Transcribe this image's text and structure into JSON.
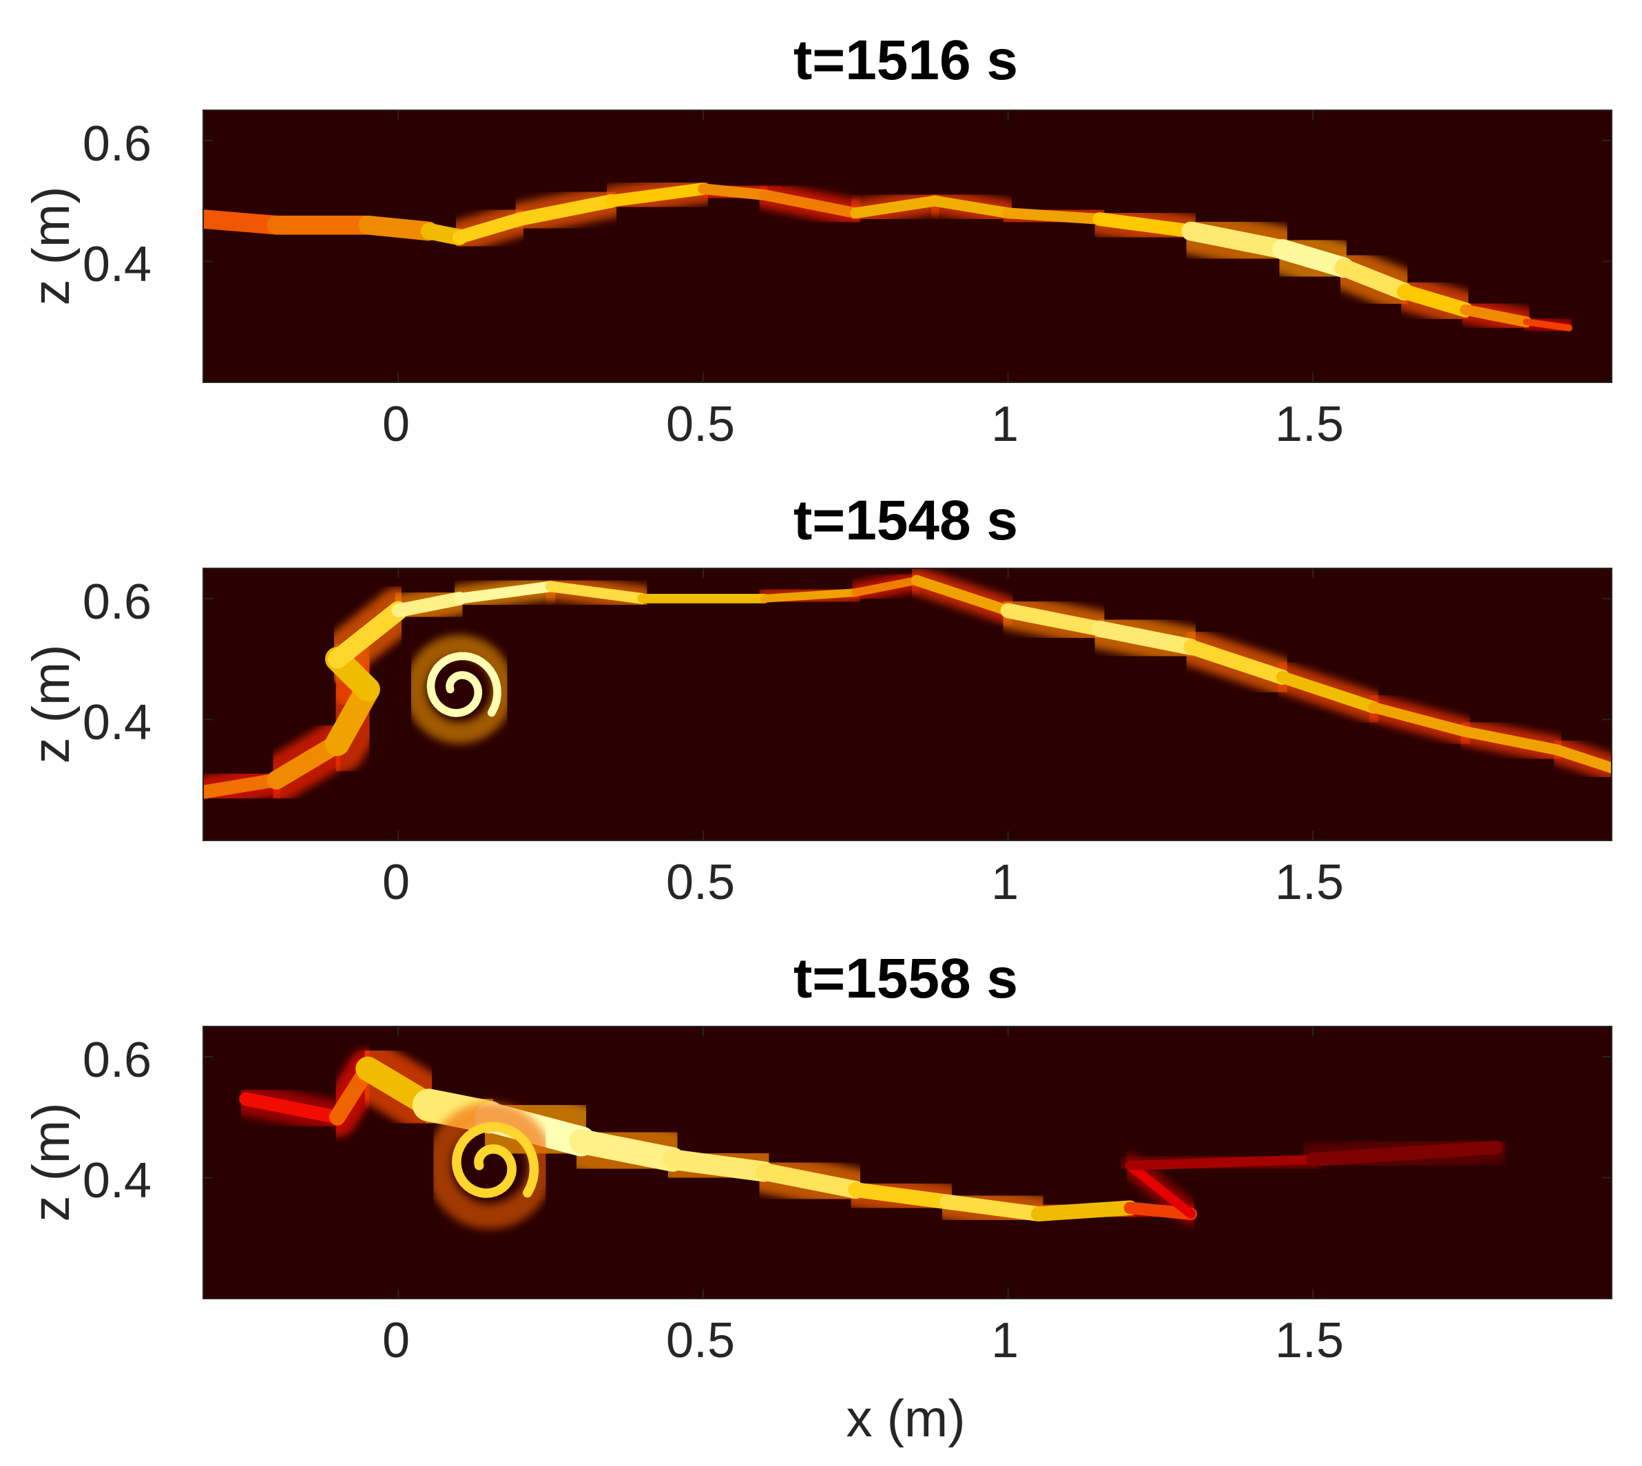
{
  "chart_data": [
    {
      "type": "heatmap",
      "title": "t=1516 s",
      "xlabel": "",
      "ylabel": "z (m)",
      "xlim": [
        -0.32,
        1.99
      ],
      "ylim": [
        0.2,
        0.65
      ],
      "xticks": [
        0,
        0.5,
        1,
        1.5
      ],
      "xtick_labels": [
        "0",
        "0.5",
        "1",
        "1.5"
      ],
      "yticks": [
        0.4,
        0.6
      ],
      "ytick_labels": [
        "0.4",
        "0.6"
      ],
      "colormap": "hot",
      "background_color": "#2a0000",
      "interface": [
        {
          "x": -0.32,
          "z": 0.47,
          "w": 0.035,
          "a": 0.55
        },
        {
          "x": -0.2,
          "z": 0.46,
          "w": 0.035,
          "a": 0.6
        },
        {
          "x": -0.05,
          "z": 0.46,
          "w": 0.035,
          "a": 0.65
        },
        {
          "x": 0.05,
          "z": 0.45,
          "w": 0.035,
          "a": 0.7
        },
        {
          "x": 0.1,
          "z": 0.44,
          "w": 0.025,
          "a": 0.85
        },
        {
          "x": 0.2,
          "z": 0.47,
          "w": 0.025,
          "a": 0.8
        },
        {
          "x": 0.35,
          "z": 0.5,
          "w": 0.025,
          "a": 0.85
        },
        {
          "x": 0.5,
          "z": 0.52,
          "w": 0.02,
          "a": 0.75
        },
        {
          "x": 0.6,
          "z": 0.51,
          "w": 0.02,
          "a": 0.6
        },
        {
          "x": 0.75,
          "z": 0.48,
          "w": 0.02,
          "a": 0.7
        },
        {
          "x": 0.88,
          "z": 0.5,
          "w": 0.02,
          "a": 0.8
        },
        {
          "x": 1.0,
          "z": 0.48,
          "w": 0.02,
          "a": 0.7
        },
        {
          "x": 1.15,
          "z": 0.47,
          "w": 0.02,
          "a": 0.75
        },
        {
          "x": 1.3,
          "z": 0.45,
          "w": 0.03,
          "a": 0.85
        },
        {
          "x": 1.45,
          "z": 0.42,
          "w": 0.04,
          "a": 1.0
        },
        {
          "x": 1.55,
          "z": 0.39,
          "w": 0.035,
          "a": 0.95
        },
        {
          "x": 1.65,
          "z": 0.35,
          "w": 0.03,
          "a": 0.85
        },
        {
          "x": 1.75,
          "z": 0.32,
          "w": 0.025,
          "a": 0.75
        },
        {
          "x": 1.85,
          "z": 0.3,
          "w": 0.015,
          "a": 0.6
        },
        {
          "x": 1.92,
          "z": 0.29,
          "w": 0.01,
          "a": 0.45
        }
      ]
    },
    {
      "type": "heatmap",
      "title": "t=1548 s",
      "xlabel": "",
      "ylabel": "z (m)",
      "xlim": [
        -0.32,
        1.99
      ],
      "ylim": [
        0.2,
        0.65
      ],
      "xticks": [
        0,
        0.5,
        1,
        1.5
      ],
      "xtick_labels": [
        "0",
        "0.5",
        "1",
        "1.5"
      ],
      "yticks": [
        0.4,
        0.6
      ],
      "ytick_labels": [
        "0.4",
        "0.6"
      ],
      "colormap": "hot",
      "background_color": "#2a0000",
      "interface": [
        {
          "x": -0.32,
          "z": 0.28,
          "w": 0.02,
          "a": 0.6
        },
        {
          "x": -0.2,
          "z": 0.3,
          "w": 0.03,
          "a": 0.65
        },
        {
          "x": -0.1,
          "z": 0.36,
          "w": 0.04,
          "a": 0.7
        },
        {
          "x": -0.05,
          "z": 0.45,
          "w": 0.05,
          "a": 0.75
        },
        {
          "x": -0.1,
          "z": 0.5,
          "w": 0.04,
          "a": 0.8
        },
        {
          "x": 0.0,
          "z": 0.58,
          "w": 0.03,
          "a": 0.9
        },
        {
          "x": 0.1,
          "z": 0.6,
          "w": 0.02,
          "a": 1.0
        },
        {
          "x": 0.25,
          "z": 0.62,
          "w": 0.02,
          "a": 0.95
        },
        {
          "x": 0.4,
          "z": 0.6,
          "w": 0.02,
          "a": 0.8
        },
        {
          "x": 0.6,
          "z": 0.6,
          "w": 0.015,
          "a": 0.75
        },
        {
          "x": 0.75,
          "z": 0.61,
          "w": 0.015,
          "a": 0.7
        },
        {
          "x": 0.85,
          "z": 0.63,
          "w": 0.015,
          "a": 0.6
        },
        {
          "x": 1.0,
          "z": 0.58,
          "w": 0.025,
          "a": 0.85
        },
        {
          "x": 1.15,
          "z": 0.55,
          "w": 0.03,
          "a": 0.95
        },
        {
          "x": 1.3,
          "z": 0.52,
          "w": 0.03,
          "a": 0.9
        },
        {
          "x": 1.45,
          "z": 0.47,
          "w": 0.025,
          "a": 0.8
        },
        {
          "x": 1.6,
          "z": 0.42,
          "w": 0.02,
          "a": 0.75
        },
        {
          "x": 1.75,
          "z": 0.38,
          "w": 0.02,
          "a": 0.7
        },
        {
          "x": 1.9,
          "z": 0.35,
          "w": 0.02,
          "a": 0.75
        },
        {
          "x": 1.99,
          "z": 0.32,
          "w": 0.02,
          "a": 0.7
        }
      ],
      "vortex": {
        "x": 0.1,
        "z": 0.45,
        "r": 0.06,
        "a": 1.0
      }
    },
    {
      "type": "heatmap",
      "title": "t=1558 s",
      "xlabel": "x (m)",
      "ylabel": "z (m)",
      "xlim": [
        -0.32,
        1.99
      ],
      "ylim": [
        0.2,
        0.65
      ],
      "xticks": [
        0,
        0.5,
        1,
        1.5
      ],
      "xtick_labels": [
        "0",
        "0.5",
        "1",
        "1.5"
      ],
      "yticks": [
        0.4,
        0.6
      ],
      "ytick_labels": [
        "0.4",
        "0.6"
      ],
      "colormap": "hot",
      "background_color": "#2a0000",
      "interface": [
        {
          "x": -0.25,
          "z": 0.53,
          "w": 0.02,
          "a": 0.35
        },
        {
          "x": -0.1,
          "z": 0.5,
          "w": 0.03,
          "a": 0.5
        },
        {
          "x": -0.05,
          "z": 0.58,
          "w": 0.03,
          "a": 0.7
        },
        {
          "x": 0.05,
          "z": 0.52,
          "w": 0.06,
          "a": 0.85
        },
        {
          "x": 0.15,
          "z": 0.5,
          "w": 0.06,
          "a": 1.0
        },
        {
          "x": 0.3,
          "z": 0.46,
          "w": 0.05,
          "a": 1.0
        },
        {
          "x": 0.45,
          "z": 0.43,
          "w": 0.04,
          "a": 0.9
        },
        {
          "x": 0.6,
          "z": 0.41,
          "w": 0.035,
          "a": 0.95
        },
        {
          "x": 0.75,
          "z": 0.38,
          "w": 0.03,
          "a": 0.85
        },
        {
          "x": 0.9,
          "z": 0.36,
          "w": 0.025,
          "a": 0.8
        },
        {
          "x": 1.05,
          "z": 0.34,
          "w": 0.03,
          "a": 0.95
        },
        {
          "x": 1.2,
          "z": 0.35,
          "w": 0.025,
          "a": 0.6
        },
        {
          "x": 1.3,
          "z": 0.34,
          "w": 0.02,
          "a": 0.45
        },
        {
          "x": 1.2,
          "z": 0.42,
          "w": 0.015,
          "a": 0.3
        },
        {
          "x": 1.5,
          "z": 0.43,
          "w": 0.02,
          "a": 0.2
        },
        {
          "x": 1.8,
          "z": 0.45,
          "w": 0.03,
          "a": 0.15
        }
      ],
      "vortex": {
        "x": 0.15,
        "z": 0.42,
        "r": 0.07,
        "a": 0.85
      }
    }
  ]
}
